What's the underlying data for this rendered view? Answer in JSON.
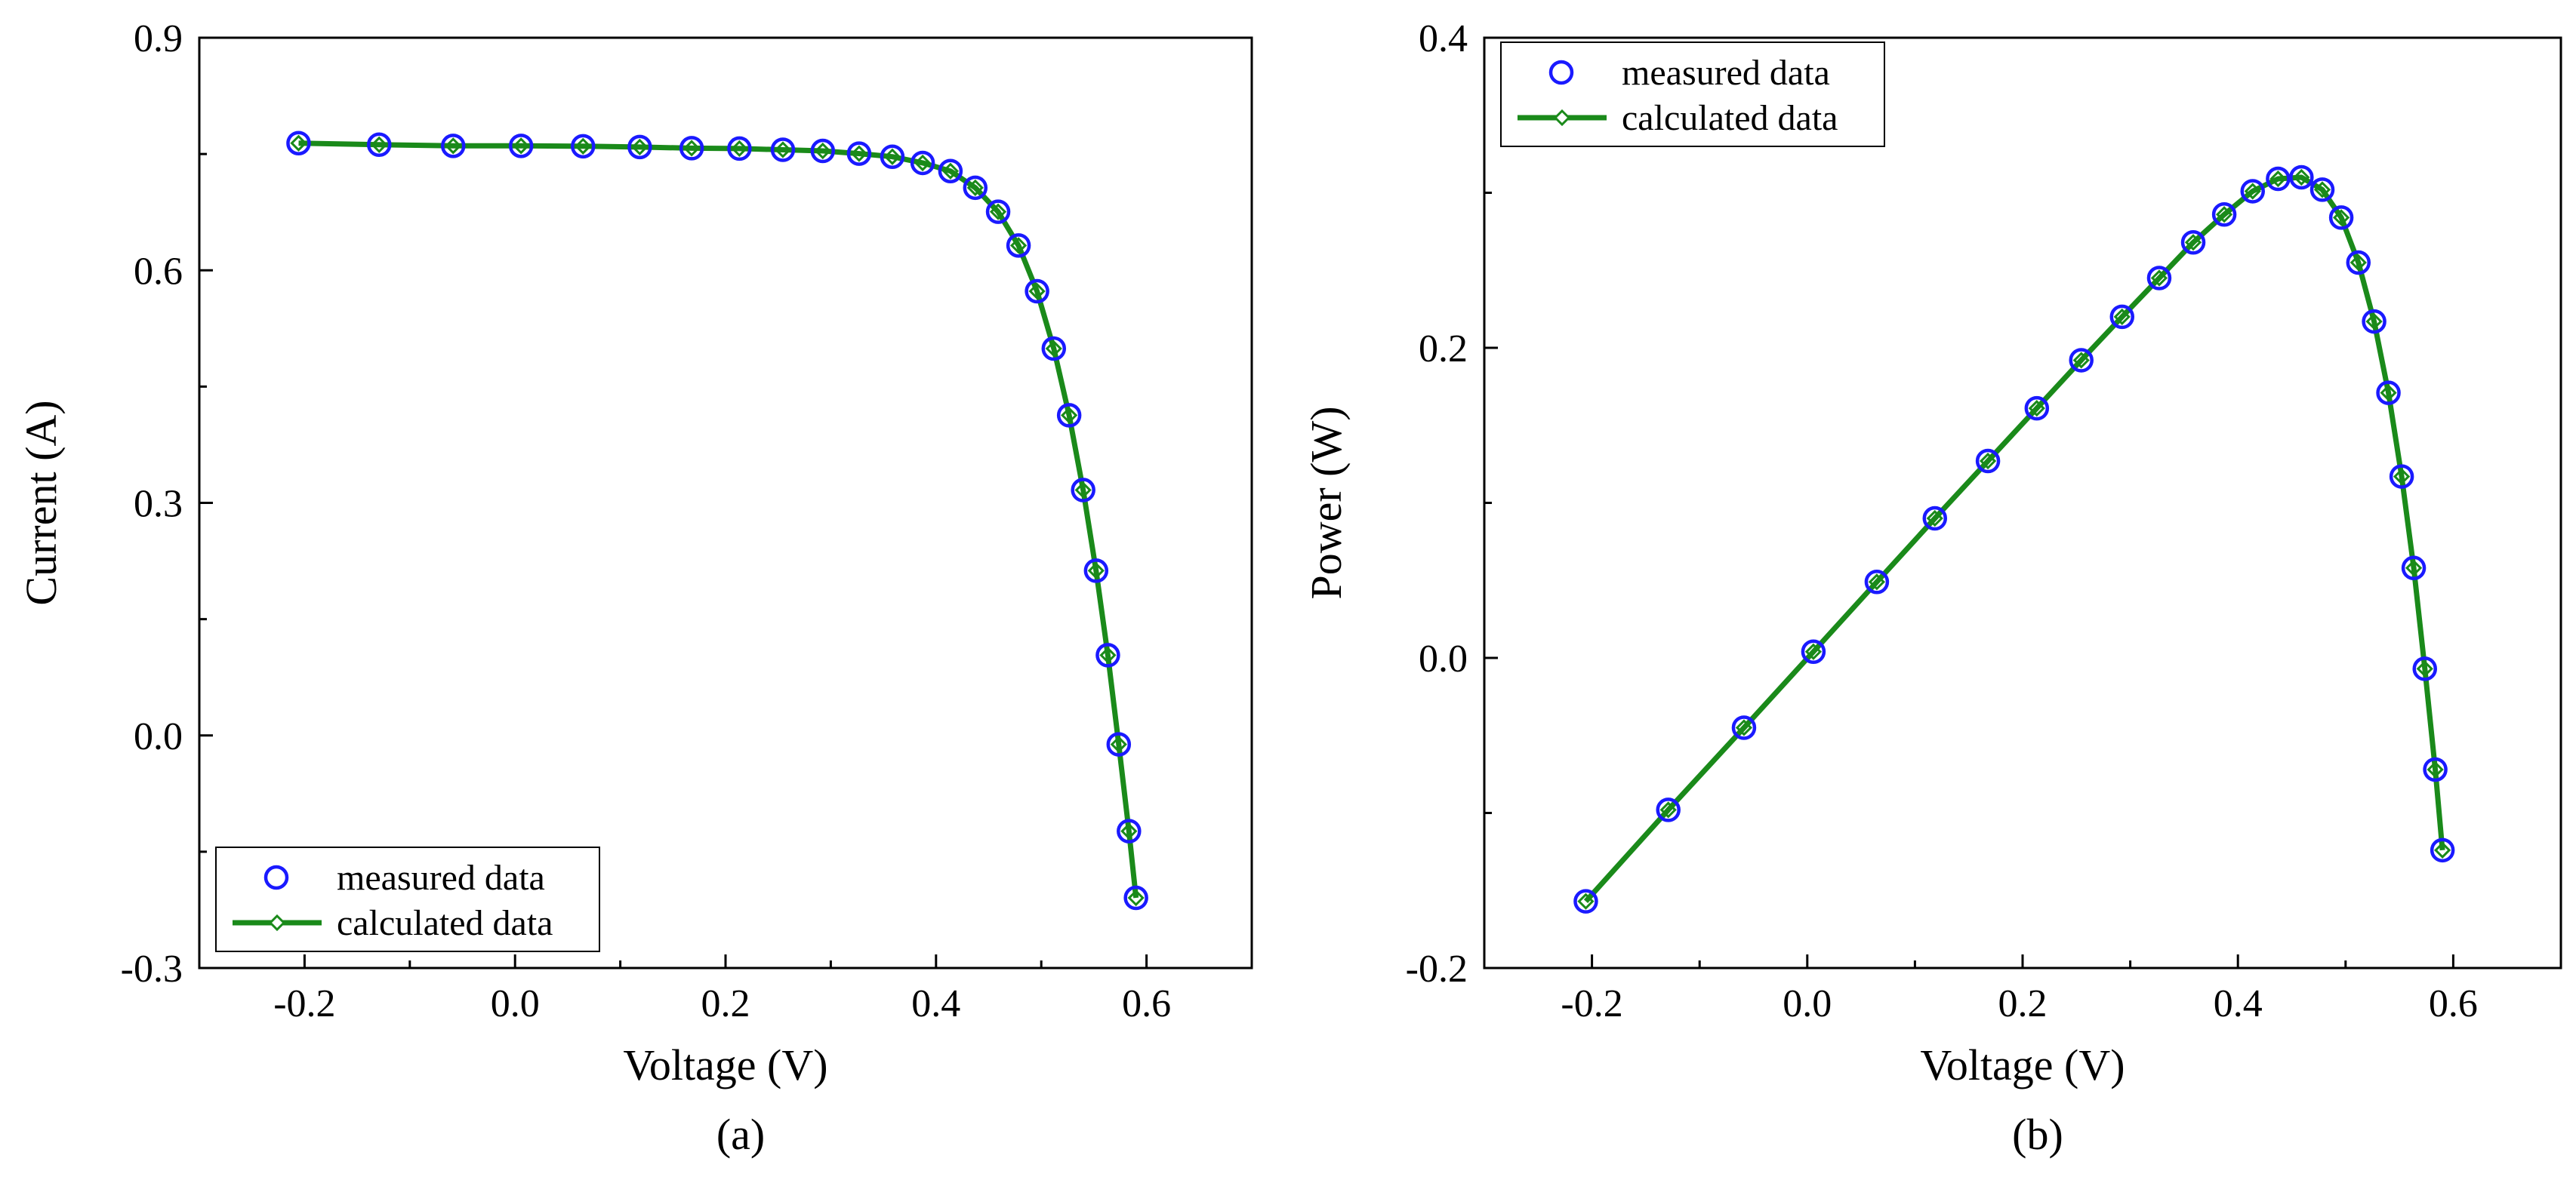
{
  "chart_data": [
    {
      "type": "scatter",
      "panel_label": "(a)",
      "xlabel": "Voltage (V)",
      "ylabel": "Current (A)",
      "xlim": [
        -0.3,
        0.7
      ],
      "ylim": [
        -0.3,
        0.9
      ],
      "xticks": [
        -0.2,
        0.0,
        0.2,
        0.4,
        0.6
      ],
      "yticks": [
        -0.3,
        0.0,
        0.3,
        0.6,
        0.9
      ],
      "xtick_labels": [
        "-0.2",
        "0.0",
        "0.2",
        "0.4",
        "0.6"
      ],
      "ytick_labels": [
        "-0.3",
        "0.0",
        "0.3",
        "0.6",
        "0.9"
      ],
      "grid": false,
      "legend_position": "bottom-left",
      "series": [
        {
          "name": "measured data",
          "style": "open-circle",
          "color": "#1a1aff",
          "x": [
            -0.2057,
            -0.1291,
            -0.0588,
            0.0057,
            0.0646,
            0.1185,
            0.1678,
            0.2132,
            0.2545,
            0.2924,
            0.3269,
            0.3585,
            0.3873,
            0.4137,
            0.4373,
            0.459,
            0.4784,
            0.496,
            0.5119,
            0.5265,
            0.5398,
            0.5521,
            0.5633,
            0.5736,
            0.5833,
            0.59
          ],
          "y": [
            0.764,
            0.762,
            0.7605,
            0.7605,
            0.76,
            0.759,
            0.7575,
            0.757,
            0.7555,
            0.754,
            0.7505,
            0.7465,
            0.7385,
            0.728,
            0.7065,
            0.6755,
            0.632,
            0.573,
            0.499,
            0.413,
            0.3165,
            0.2125,
            0.1035,
            -0.0115,
            -0.1235,
            -0.2095
          ]
        },
        {
          "name": "calculated data",
          "style": "line-diamond",
          "color": "#1a8a1a",
          "x": [
            -0.2057,
            -0.1291,
            -0.0588,
            0.0057,
            0.0646,
            0.1185,
            0.1678,
            0.2132,
            0.2545,
            0.2924,
            0.3269,
            0.3585,
            0.3873,
            0.4137,
            0.4373,
            0.459,
            0.4784,
            0.496,
            0.5119,
            0.5265,
            0.5398,
            0.5521,
            0.5633,
            0.5736,
            0.5833,
            0.59
          ],
          "y": [
            0.764,
            0.762,
            0.7605,
            0.7605,
            0.76,
            0.759,
            0.7575,
            0.757,
            0.7555,
            0.754,
            0.7505,
            0.7465,
            0.7385,
            0.728,
            0.7065,
            0.6755,
            0.632,
            0.573,
            0.499,
            0.413,
            0.3165,
            0.2125,
            0.1035,
            -0.0115,
            -0.1235,
            -0.2095
          ]
        }
      ]
    },
    {
      "type": "scatter",
      "panel_label": "(b)",
      "xlabel": "Voltage (V)",
      "ylabel": "Power (W)",
      "xlim": [
        -0.3,
        0.7
      ],
      "ylim": [
        -0.2,
        0.4
      ],
      "xticks": [
        -0.2,
        0.0,
        0.2,
        0.4,
        0.6
      ],
      "yticks": [
        -0.2,
        0.0,
        0.2,
        0.4
      ],
      "xtick_labels": [
        "-0.2",
        "0.0",
        "0.2",
        "0.4",
        "0.6"
      ],
      "ytick_labels": [
        "-0.2",
        "0.0",
        "0.2",
        "0.4"
      ],
      "grid": false,
      "legend_position": "top-left",
      "series": [
        {
          "name": "measured data",
          "style": "open-circle",
          "color": "#1a1aff",
          "x": [
            -0.2057,
            -0.1291,
            -0.0588,
            0.0057,
            0.0646,
            0.1185,
            0.1678,
            0.2132,
            0.2545,
            0.2924,
            0.3269,
            0.3585,
            0.3873,
            0.4137,
            0.4373,
            0.459,
            0.4784,
            0.496,
            0.5119,
            0.5265,
            0.5398,
            0.5521,
            0.5633,
            0.5736,
            0.5833,
            0.59
          ],
          "y": [
            -0.157,
            -0.098,
            -0.045,
            0.004,
            0.049,
            0.09,
            0.127,
            0.161,
            0.192,
            0.22,
            0.245,
            0.268,
            0.286,
            0.301,
            0.309,
            0.31,
            0.302,
            0.284,
            0.255,
            0.217,
            0.171,
            0.117,
            0.058,
            -0.007,
            -0.072,
            -0.124
          ]
        },
        {
          "name": "calculated data",
          "style": "line-diamond",
          "color": "#1a8a1a",
          "x": [
            -0.2057,
            -0.1291,
            -0.0588,
            0.0057,
            0.0646,
            0.1185,
            0.1678,
            0.2132,
            0.2545,
            0.2924,
            0.3269,
            0.3585,
            0.3873,
            0.4137,
            0.4373,
            0.459,
            0.4784,
            0.496,
            0.5119,
            0.5265,
            0.5398,
            0.5521,
            0.5633,
            0.5736,
            0.5833,
            0.59
          ],
          "y": [
            -0.157,
            -0.098,
            -0.045,
            0.004,
            0.049,
            0.09,
            0.127,
            0.161,
            0.192,
            0.22,
            0.245,
            0.268,
            0.286,
            0.301,
            0.309,
            0.31,
            0.302,
            0.284,
            0.255,
            0.217,
            0.171,
            0.117,
            0.058,
            -0.007,
            -0.072,
            -0.124
          ]
        }
      ]
    }
  ]
}
